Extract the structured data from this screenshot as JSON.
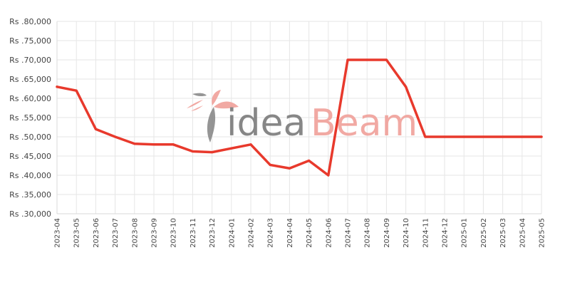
{
  "watermark": {
    "part1": "idea",
    "part2": "Beam"
  },
  "colors": {
    "line": "#e8392c",
    "grid": "#e6e6e6",
    "axis": "#d9d9d9",
    "text": "#444444"
  },
  "chart_data": {
    "type": "line",
    "title": "",
    "xlabel": "",
    "ylabel": "",
    "grid": true,
    "legend": "none",
    "ylim": [
      30000,
      80000
    ],
    "yticks": [
      30000,
      35000,
      40000,
      45000,
      50000,
      55000,
      60000,
      65000,
      70000,
      75000,
      80000
    ],
    "ytick_labels": [
      "Rs .30,000",
      "Rs .35,000",
      "Rs .40,000",
      "Rs .45,000",
      "Rs .50,000",
      "Rs .55,000",
      "Rs .60,000",
      "Rs .65,000",
      "Rs .70,000",
      "Rs .75,000",
      "Rs .80,000"
    ],
    "categories": [
      "2023-04",
      "2023-05",
      "2023-06",
      "2023-07",
      "2023-08",
      "2023-09",
      "2023-10",
      "2023-11",
      "2023-12",
      "2024-01",
      "2024-02",
      "2024-03",
      "2024-04",
      "2024-05",
      "2024-06",
      "2024-07",
      "2024-08",
      "2024-09",
      "2024-10",
      "2024-11",
      "2024-12",
      "2025-01",
      "2025-02",
      "2025-03",
      "2025-04",
      "2025-05"
    ],
    "series": [
      {
        "values": [
          63000,
          62000,
          52000,
          50000,
          48200,
          48000,
          48000,
          46200,
          46000,
          47000,
          48000,
          42700,
          41800,
          43800,
          40000,
          70000,
          70000,
          70000,
          63000,
          50000,
          50000,
          50000,
          50000,
          50000,
          50000,
          50000
        ]
      }
    ]
  }
}
